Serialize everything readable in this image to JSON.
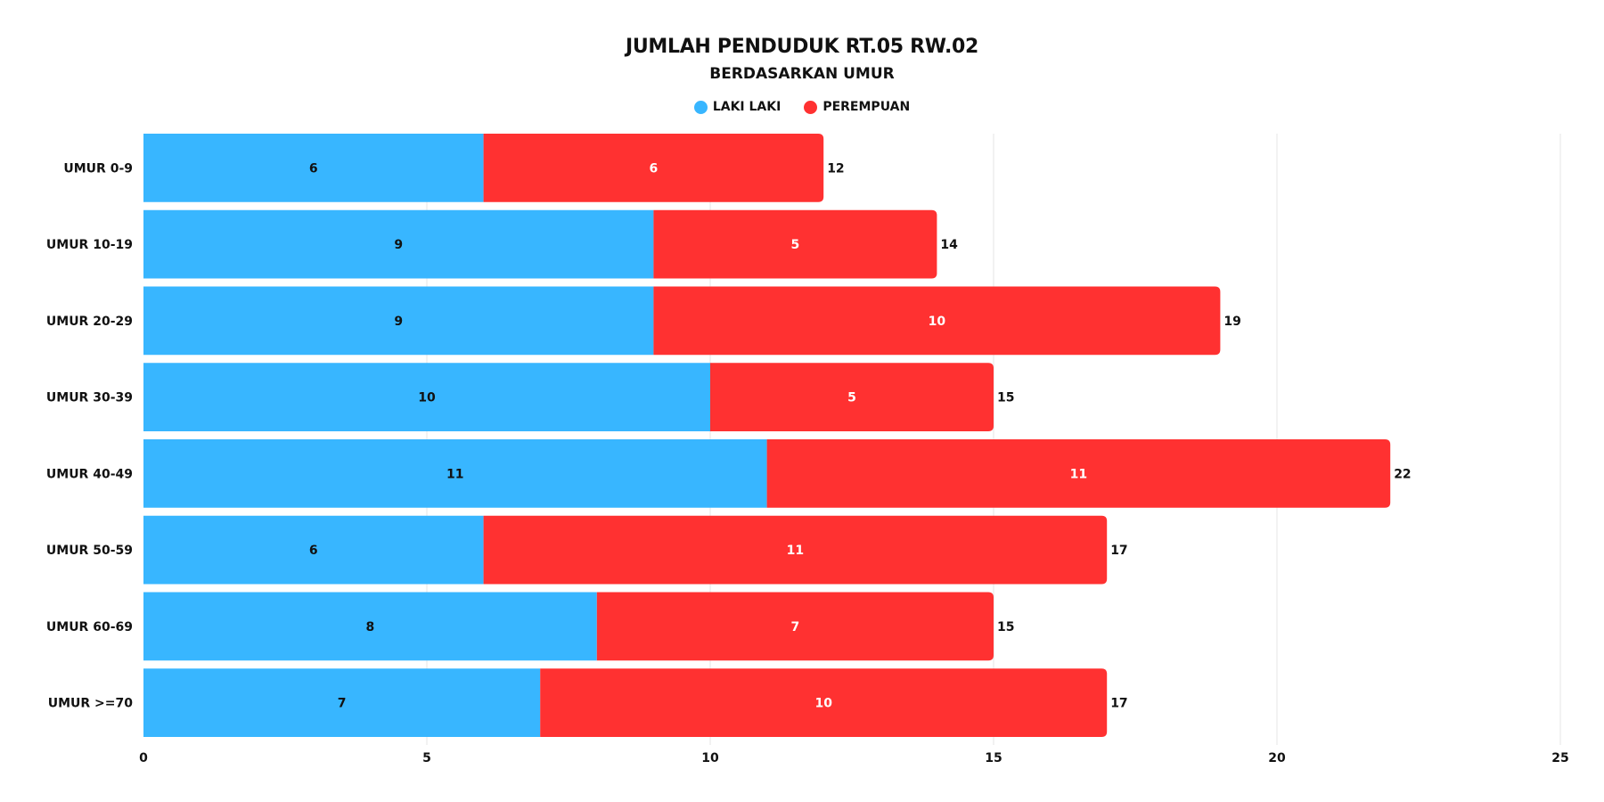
{
  "chart_data": {
    "type": "bar",
    "orientation": "horizontal",
    "stacked": true,
    "title": "JUMLAH PENDUDUK RT.05 RW.02",
    "subtitle": "BERDASARKAN UMUR",
    "categories": [
      "UMUR 0-9",
      "UMUR 10-19",
      "UMUR 20-29",
      "UMUR 30-39",
      "UMUR 40-49",
      "UMUR 50-59",
      "UMUR 60-69",
      "UMUR >=70"
    ],
    "series": [
      {
        "name": "LAKI LAKI",
        "color": "#38B6FF",
        "label_color": "#111111",
        "values": [
          6,
          9,
          9,
          10,
          11,
          6,
          8,
          7
        ]
      },
      {
        "name": "PEREMPUAN",
        "color": "#FF3131",
        "label_color": "#ffffff",
        "values": [
          6,
          5,
          10,
          5,
          11,
          11,
          7,
          10
        ]
      }
    ],
    "totals": [
      12,
      14,
      19,
      15,
      22,
      17,
      15,
      17
    ],
    "xlim": [
      0,
      25
    ],
    "xticks": [
      0,
      5,
      10,
      15,
      20,
      25
    ],
    "grid": "vertical",
    "legend_position": "top-center"
  }
}
